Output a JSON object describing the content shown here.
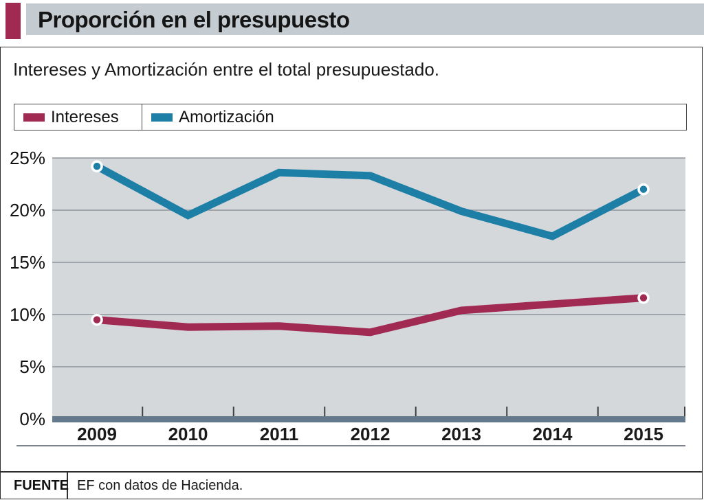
{
  "header": {
    "title": "Proporción en el presupuesto"
  },
  "chart_data": {
    "type": "line",
    "title": "Intereses y Amortización entre el total presupuestado.",
    "xlabel": "",
    "ylabel": "",
    "categories": [
      "2009",
      "2010",
      "2011",
      "2012",
      "2013",
      "2014",
      "2015"
    ],
    "series": [
      {
        "name": "Intereses",
        "color": "#a12a52",
        "values": [
          9.5,
          8.8,
          8.9,
          8.3,
          10.4,
          11.0,
          11.6
        ]
      },
      {
        "name": "Amortización",
        "color": "#1d7ea6",
        "values": [
          24.2,
          19.5,
          23.6,
          23.3,
          19.9,
          17.5,
          22.0
        ]
      }
    ],
    "ylim": [
      0,
      25
    ],
    "ytick_step": 5,
    "ytick_suffix": "%",
    "grid": true,
    "legend_position": "top-left",
    "markers": "first-and-last-points"
  },
  "footer": {
    "source_label": "FUENTE",
    "source_text": "EF con datos de Hacienda."
  },
  "colors": {
    "accent_maroon": "#a12a52",
    "accent_blue": "#1d7ea6",
    "header_band": "#c4ccd2",
    "plot_background": "#d4d8db",
    "axis_bar": "#65798c",
    "gridline": "#8e969d"
  }
}
